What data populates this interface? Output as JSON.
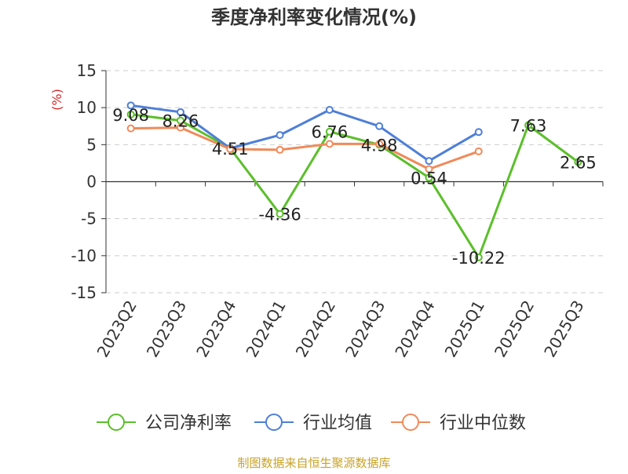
{
  "chart_data": {
    "type": "line",
    "title": "季度净利率变化情况(%)",
    "ylabel": "(%)",
    "xlabel": "",
    "categories": [
      "2023Q2",
      "2023Q3",
      "2023Q4",
      "2024Q1",
      "2024Q2",
      "2024Q3",
      "2024Q4",
      "2025Q1",
      "2025Q2",
      "2025Q3"
    ],
    "ylim": [
      -15,
      15
    ],
    "yticks": [
      "15",
      "10",
      "5",
      "0",
      "-5",
      "-10",
      "-15"
    ],
    "grid": true,
    "legend_position": "bottom",
    "series": [
      {
        "name": "公司净利率",
        "color": "#5bbf2a",
        "values": [
          9.08,
          8.26,
          4.51,
          -4.36,
          6.76,
          4.98,
          0.54,
          -10.22,
          7.63,
          2.65
        ],
        "labels": [
          "9.08",
          "8.26",
          "4.51",
          "-4.36",
          "6.76",
          "4.98",
          "0.54",
          "-10.22",
          "7.63",
          "2.65"
        ]
      },
      {
        "name": "行业均值",
        "color": "#4e7fd8",
        "values": [
          10.3,
          9.4,
          4.5,
          6.3,
          9.7,
          7.5,
          2.8,
          6.7,
          null,
          null
        ]
      },
      {
        "name": "行业中位数",
        "color": "#f08a5a",
        "values": [
          7.2,
          7.3,
          4.4,
          4.3,
          5.1,
          5.1,
          1.7,
          4.1,
          null,
          null
        ]
      }
    ],
    "source_note": "制图数据来自恒生聚源数据库"
  }
}
